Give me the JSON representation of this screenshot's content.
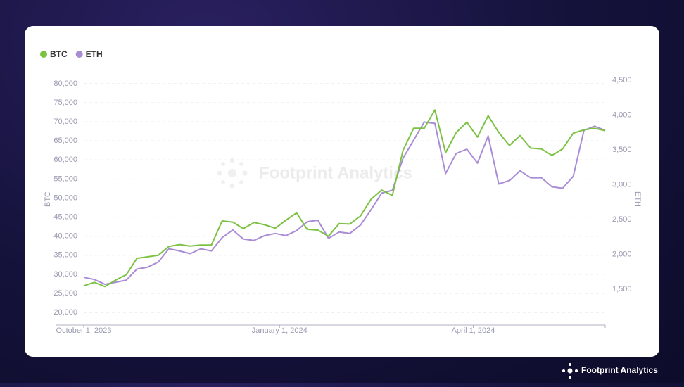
{
  "chart_data": {
    "type": "line",
    "x": [
      "2023-10-01",
      "2023-10-06",
      "2023-10-11",
      "2023-10-16",
      "2023-10-21",
      "2023-10-26",
      "2023-10-31",
      "2023-11-05",
      "2023-11-10",
      "2023-11-15",
      "2023-11-20",
      "2023-11-25",
      "2023-11-30",
      "2023-12-05",
      "2023-12-10",
      "2023-12-15",
      "2023-12-20",
      "2023-12-25",
      "2023-12-30",
      "2024-01-04",
      "2024-01-09",
      "2024-01-14",
      "2024-01-19",
      "2024-01-24",
      "2024-01-29",
      "2024-02-03",
      "2024-02-08",
      "2024-02-13",
      "2024-02-18",
      "2024-02-23",
      "2024-02-28",
      "2024-03-04",
      "2024-03-09",
      "2024-03-14",
      "2024-03-19",
      "2024-03-24",
      "2024-03-29",
      "2024-04-03",
      "2024-04-08",
      "2024-04-13",
      "2024-04-18",
      "2024-04-23",
      "2024-04-28",
      "2024-05-03",
      "2024-05-08",
      "2024-05-13",
      "2024-05-18",
      "2024-05-23",
      "2024-05-28",
      "2024-06-02"
    ],
    "series": [
      {
        "name": "BTC",
        "color": "#7cc242",
        "axis": "y",
        "values": [
          27000,
          27900,
          26800,
          28500,
          29900,
          34200,
          34600,
          35000,
          37300,
          37800,
          37400,
          37700,
          37700,
          44000,
          43700,
          42000,
          43600,
          43000,
          42100,
          44200,
          46100,
          41800,
          41600,
          40000,
          43300,
          43200,
          45300,
          49700,
          52100,
          50700,
          62500,
          68300,
          68300,
          73100,
          61900,
          67200,
          69900,
          66000,
          71600,
          67200,
          63800,
          66400,
          63100,
          62900,
          61200,
          62900,
          67000,
          67900,
          68300,
          67700
        ]
      },
      {
        "name": "ETH",
        "color": "#a98bd6",
        "axis": "y2",
        "values": [
          1670,
          1640,
          1570,
          1600,
          1630,
          1790,
          1815,
          1890,
          2080,
          2050,
          2010,
          2080,
          2050,
          2240,
          2350,
          2220,
          2200,
          2270,
          2300,
          2270,
          2340,
          2470,
          2490,
          2230,
          2320,
          2300,
          2420,
          2640,
          2880,
          2920,
          3380,
          3640,
          3900,
          3880,
          3160,
          3450,
          3510,
          3310,
          3700,
          3010,
          3060,
          3200,
          3100,
          3100,
          2970,
          2950,
          3120,
          3780,
          3840,
          3780
        ]
      }
    ],
    "xlim": [
      "2023-10-01",
      "2024-06-02"
    ],
    "xticks": [
      {
        "value": "2023-10-01",
        "label": "October 1, 2023"
      },
      {
        "value": "2024-01-01",
        "label": "January 1, 2024"
      },
      {
        "value": "2024-04-01",
        "label": "April 1, 2024"
      }
    ],
    "ylabel": "BTC",
    "y2label": "ETH",
    "ylim": [
      16700,
      80900
    ],
    "yticks": [
      {
        "value": 20000,
        "label": "20,000"
      },
      {
        "value": 25000,
        "label": "25,000"
      },
      {
        "value": 30000,
        "label": "30,000"
      },
      {
        "value": 35000,
        "label": "35,000"
      },
      {
        "value": 40000,
        "label": "40,000"
      },
      {
        "value": 45000,
        "label": "45,000"
      },
      {
        "value": 50000,
        "label": "50,000"
      },
      {
        "value": 55000,
        "label": "55,000"
      },
      {
        "value": 60000,
        "label": "60,000"
      },
      {
        "value": 65000,
        "label": "65,000"
      },
      {
        "value": 70000,
        "label": "70,000"
      },
      {
        "value": 75000,
        "label": "75,000"
      },
      {
        "value": 80000,
        "label": "80,000"
      }
    ],
    "y2lim": [
      985,
      4500
    ],
    "y2ticks": [
      {
        "value": 1500,
        "label": "1,500"
      },
      {
        "value": 2000,
        "label": "2,000"
      },
      {
        "value": 2500,
        "label": "2,500"
      },
      {
        "value": 3000,
        "label": "3,000"
      },
      {
        "value": 3500,
        "label": "3,500"
      },
      {
        "value": 4000,
        "label": "4,000"
      },
      {
        "value": 4500,
        "label": "4,500"
      }
    ],
    "grid": true,
    "legend": "top-left"
  },
  "watermark": "Footprint Analytics",
  "brand": "Footprint Analytics"
}
